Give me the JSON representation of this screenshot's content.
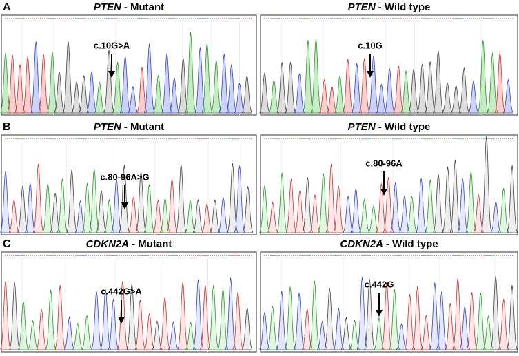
{
  "rows": [
    {
      "label": "A",
      "panels": [
        {
          "gene": "PTEN",
          "condition": "- Mutant",
          "annotation": "c.10G>A"
        },
        {
          "gene": "PTEN",
          "condition": "- Wild type",
          "annotation": "c.10G"
        }
      ]
    },
    {
      "label": "B",
      "panels": [
        {
          "gene": "PTEN",
          "condition": "- Mutant",
          "annotation": "c.80-96A>G"
        },
        {
          "gene": "PTEN",
          "condition": "- Wild type",
          "annotation": "c.80-96A"
        }
      ]
    },
    {
      "label": "C",
      "panels": [
        {
          "gene": "CDKN2A",
          "condition": "- Mutant",
          "annotation": "c.442G>A"
        },
        {
          "gene": "CDKN2A",
          "condition": "- Wild type",
          "annotation": "c.442G"
        }
      ]
    }
  ]
}
